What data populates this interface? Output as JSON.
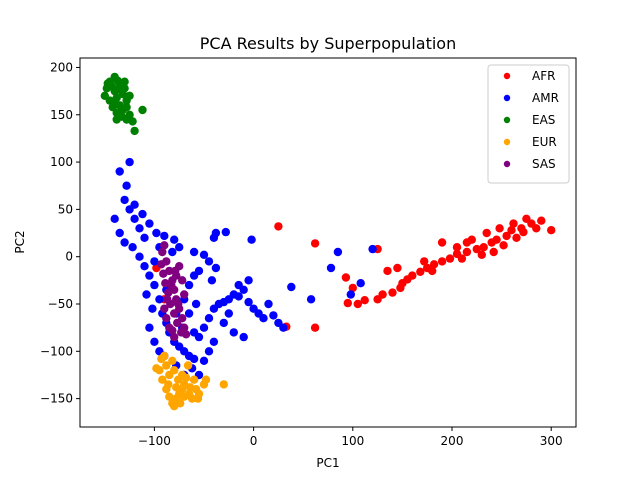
{
  "chart_data": {
    "type": "scatter",
    "title": "PCA Results by Superpopulation",
    "xlabel": "PC1",
    "ylabel": "PC2",
    "xlim": [
      -175,
      325
    ],
    "ylim": [
      -180,
      210
    ],
    "xticks": [
      -100,
      0,
      100,
      200,
      300
    ],
    "yticks": [
      -150,
      -100,
      -50,
      0,
      50,
      100,
      150,
      200
    ],
    "grid": false,
    "legend_position": "top-right",
    "series": [
      {
        "name": "AFR",
        "color": "#ff0000",
        "points": [
          [
            260,
            28
          ],
          [
            255,
            22
          ],
          [
            270,
            30
          ],
          [
            280,
            35
          ],
          [
            290,
            38
          ],
          [
            300,
            28
          ],
          [
            245,
            18
          ],
          [
            240,
            15
          ],
          [
            232,
            10
          ],
          [
            225,
            8
          ],
          [
            215,
            5
          ],
          [
            205,
            3
          ],
          [
            198,
            -2
          ],
          [
            190,
            -5
          ],
          [
            182,
            -8
          ],
          [
            175,
            -12
          ],
          [
            168,
            -16
          ],
          [
            160,
            -20
          ],
          [
            155,
            -24
          ],
          [
            150,
            -28
          ],
          [
            148,
            -33
          ],
          [
            140,
            -38
          ],
          [
            130,
            -40
          ],
          [
            125,
            -45
          ],
          [
            112,
            -46
          ],
          [
            105,
            -50
          ],
          [
            95,
            -49
          ],
          [
            93,
            -22
          ],
          [
            100,
            -33
          ],
          [
            135,
            -15
          ],
          [
            145,
            -12
          ],
          [
            125,
            8
          ],
          [
            190,
            15
          ],
          [
            205,
            10
          ],
          [
            215,
            15
          ],
          [
            220,
            18
          ],
          [
            235,
            25
          ],
          [
            248,
            30
          ],
          [
            262,
            35
          ],
          [
            275,
            40
          ],
          [
            285,
            30
          ],
          [
            265,
            20
          ],
          [
            272,
            26
          ],
          [
            252,
            12
          ],
          [
            242,
            5
          ],
          [
            230,
            2
          ],
          [
            210,
            -2
          ],
          [
            172,
            -5
          ],
          [
            180,
            -15
          ],
          [
            25,
            32
          ],
          [
            62,
            14
          ],
          [
            33,
            -74
          ],
          [
            62,
            -75
          ],
          [
            -98,
            -12
          ],
          [
            -90,
            -45
          ]
        ]
      },
      {
        "name": "AMR",
        "color": "#0000ff",
        "points": [
          [
            -135,
            90
          ],
          [
            -128,
            75
          ],
          [
            -125,
            100
          ],
          [
            -130,
            60
          ],
          [
            -125,
            50
          ],
          [
            -120,
            40
          ],
          [
            -115,
            30
          ],
          [
            -110,
            20
          ],
          [
            -122,
            10
          ],
          [
            -115,
            0
          ],
          [
            -110,
            -10
          ],
          [
            -105,
            -20
          ],
          [
            -100,
            -30
          ],
          [
            -95,
            -45
          ],
          [
            -92,
            -60
          ],
          [
            -88,
            -70
          ],
          [
            -85,
            -80
          ],
          [
            -80,
            -90
          ],
          [
            -75,
            -95
          ],
          [
            -70,
            -100
          ],
          [
            -65,
            -105
          ],
          [
            -60,
            -108
          ],
          [
            -55,
            -85
          ],
          [
            -50,
            -75
          ],
          [
            -45,
            -65
          ],
          [
            -40,
            -55
          ],
          [
            -35,
            -50
          ],
          [
            -30,
            -48
          ],
          [
            -25,
            -45
          ],
          [
            -20,
            -40
          ],
          [
            -15,
            -42
          ],
          [
            -10,
            -35
          ],
          [
            -5,
            -48
          ],
          [
            0,
            -55
          ],
          [
            5,
            -60
          ],
          [
            10,
            -65
          ],
          [
            15,
            -50
          ],
          [
            20,
            -62
          ],
          [
            25,
            -70
          ],
          [
            30,
            -75
          ],
          [
            -40,
            -90
          ],
          [
            -45,
            -100
          ],
          [
            -50,
            -110
          ],
          [
            -42,
            -25
          ],
          [
            -38,
            -12
          ],
          [
            -45,
            -5
          ],
          [
            -50,
            2
          ],
          [
            -55,
            -15
          ],
          [
            -60,
            -20
          ],
          [
            -65,
            -30
          ],
          [
            -70,
            -45
          ],
          [
            -82,
            5
          ],
          [
            -75,
            10
          ],
          [
            -80,
            18
          ],
          [
            -90,
            22
          ],
          [
            -98,
            25
          ],
          [
            -105,
            35
          ],
          [
            -112,
            45
          ],
          [
            -120,
            55
          ],
          [
            -140,
            40
          ],
          [
            -135,
            25
          ],
          [
            -130,
            15
          ],
          [
            -105,
            -75
          ],
          [
            -100,
            -90
          ],
          [
            -95,
            -100
          ],
          [
            -90,
            -105
          ],
          [
            -78,
            -115
          ],
          [
            -70,
            -125
          ],
          [
            -62,
            -118
          ],
          [
            -55,
            -125
          ],
          [
            -40,
            20
          ],
          [
            -38,
            25
          ],
          [
            -28,
            26
          ],
          [
            -2,
            18
          ],
          [
            38,
            -32
          ],
          [
            58,
            -45
          ],
          [
            78,
            -12
          ],
          [
            85,
            5
          ],
          [
            98,
            -40
          ],
          [
            108,
            -28
          ],
          [
            120,
            8
          ],
          [
            -60,
            5
          ],
          [
            -65,
            -60
          ],
          [
            -58,
            -50
          ],
          [
            -30,
            -70
          ],
          [
            -20,
            -80
          ],
          [
            -10,
            -85
          ],
          [
            -25,
            -60
          ],
          [
            -15,
            -30
          ],
          [
            -5,
            -25
          ],
          [
            -95,
            10
          ],
          [
            -100,
            -5
          ],
          [
            -108,
            -40
          ],
          [
            -102,
            -55
          ],
          [
            -88,
            -35
          ],
          [
            -78,
            -60
          ],
          [
            -72,
            -75
          ],
          [
            -60,
            -80
          ]
        ]
      },
      {
        "name": "EAS",
        "color": "#008000",
        "points": [
          [
            -145,
            185
          ],
          [
            -140,
            190
          ],
          [
            -135,
            182
          ],
          [
            -130,
            178
          ],
          [
            -140,
            175
          ],
          [
            -148,
            178
          ],
          [
            -150,
            170
          ],
          [
            -145,
            165
          ],
          [
            -138,
            168
          ],
          [
            -132,
            172
          ],
          [
            -128,
            165
          ],
          [
            -135,
            160
          ],
          [
            -142,
            158
          ],
          [
            -138,
            152
          ],
          [
            -132,
            155
          ],
          [
            -128,
            158
          ],
          [
            -125,
            170
          ],
          [
            -130,
            185
          ],
          [
            -143,
            180
          ],
          [
            -137,
            186
          ],
          [
            -133,
            148
          ],
          [
            -128,
            145
          ],
          [
            -125,
            150
          ],
          [
            -138,
            145
          ],
          [
            -112,
            155
          ],
          [
            -122,
            143
          ],
          [
            -120,
            133
          ],
          [
            -147,
            183
          ],
          [
            -136,
            177
          ],
          [
            -141,
            163
          ]
        ]
      },
      {
        "name": "EUR",
        "color": "#ffa500",
        "points": [
          [
            -90,
            -105
          ],
          [
            -95,
            -120
          ],
          [
            -98,
            -118
          ],
          [
            -92,
            -130
          ],
          [
            -88,
            -140
          ],
          [
            -85,
            -148
          ],
          [
            -82,
            -155
          ],
          [
            -78,
            -150
          ],
          [
            -75,
            -145
          ],
          [
            -72,
            -140
          ],
          [
            -70,
            -135
          ],
          [
            -68,
            -128
          ],
          [
            -65,
            -145
          ],
          [
            -62,
            -150
          ],
          [
            -58,
            -140
          ],
          [
            -55,
            -145
          ],
          [
            -50,
            -135
          ],
          [
            -48,
            -130
          ],
          [
            -85,
            -125
          ],
          [
            -80,
            -120
          ],
          [
            -76,
            -130
          ],
          [
            -82,
            -110
          ],
          [
            -88,
            -115
          ],
          [
            -93,
            -108
          ],
          [
            -60,
            -130
          ],
          [
            -66,
            -115
          ],
          [
            -74,
            -155
          ],
          [
            -80,
            -158
          ],
          [
            -70,
            -148
          ],
          [
            -30,
            -135
          ],
          [
            -86,
            -135
          ],
          [
            -78,
            -138
          ],
          [
            -72,
            -125
          ],
          [
            -64,
            -138
          ],
          [
            -56,
            -150
          ]
        ]
      },
      {
        "name": "SAS",
        "color": "#800080",
        "points": [
          [
            -90,
            12
          ],
          [
            -92,
            5
          ],
          [
            -88,
            -5
          ],
          [
            -85,
            -15
          ],
          [
            -82,
            -25
          ],
          [
            -80,
            -35
          ],
          [
            -78,
            -45
          ],
          [
            -75,
            -55
          ],
          [
            -72,
            -65
          ],
          [
            -70,
            -75
          ],
          [
            -68,
            -82
          ],
          [
            -80,
            -85
          ],
          [
            -85,
            -75
          ],
          [
            -88,
            -65
          ],
          [
            -90,
            -55
          ],
          [
            -87,
            -45
          ],
          [
            -83,
            -30
          ],
          [
            -78,
            -20
          ],
          [
            -75,
            -10
          ],
          [
            -72,
            -25
          ],
          [
            -70,
            -40
          ],
          [
            -76,
            -50
          ],
          [
            -80,
            -60
          ],
          [
            -84,
            -50
          ],
          [
            -86,
            -38
          ],
          [
            -89,
            -28
          ],
          [
            -91,
            -18
          ],
          [
            -93,
            -8
          ],
          [
            -77,
            -70
          ],
          [
            -73,
            -80
          ],
          [
            -82,
            -78
          ],
          [
            -79,
            -15
          ]
        ]
      }
    ]
  }
}
